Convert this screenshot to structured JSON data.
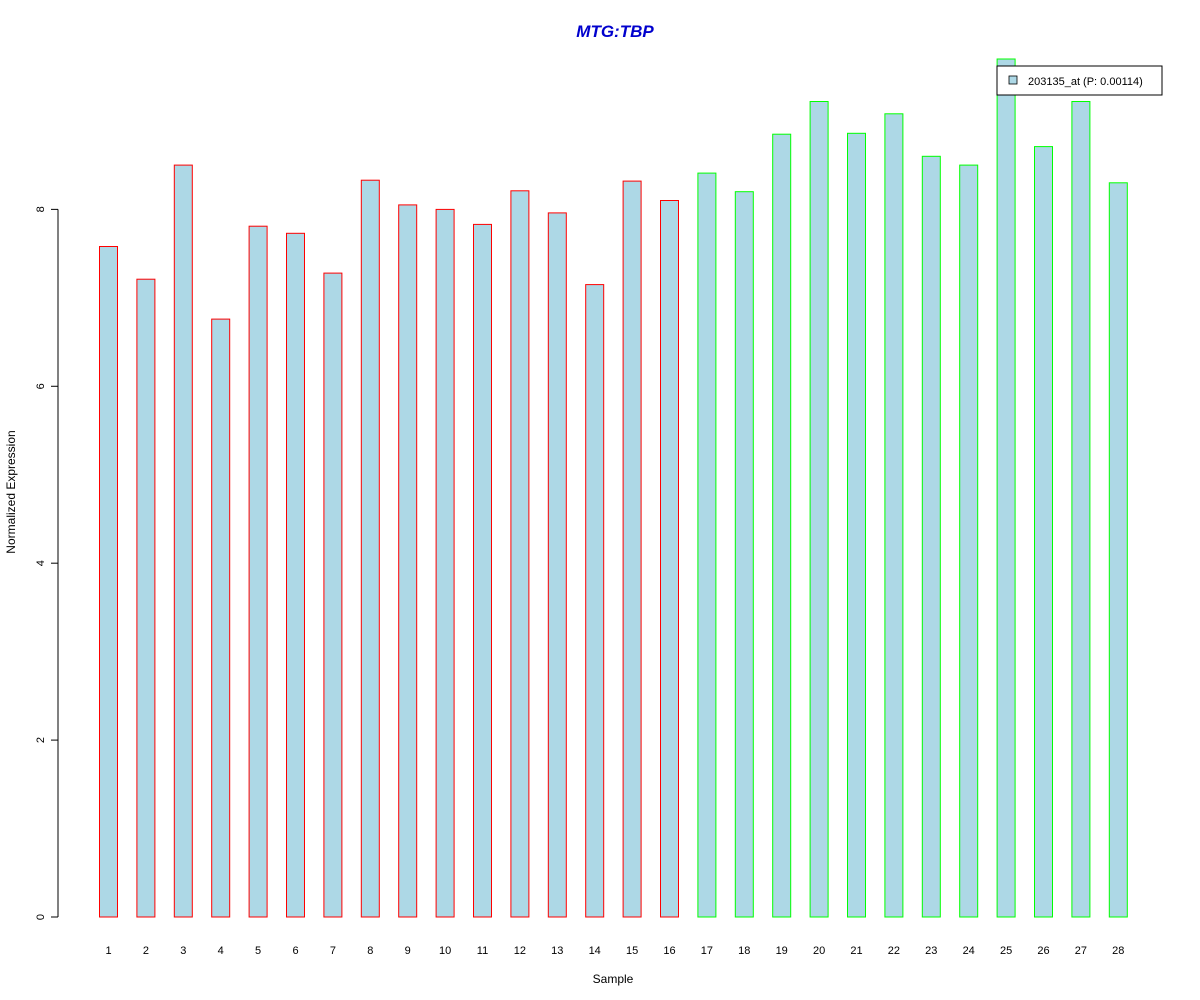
{
  "chart_data": {
    "type": "bar",
    "title": "MTG:TBP",
    "xlabel": "Sample",
    "ylabel": "Normalized Expression",
    "ylim": [
      0,
      9.7
    ],
    "yticks": [
      0,
      2,
      4,
      6,
      8
    ],
    "categories": [
      "1",
      "2",
      "3",
      "4",
      "5",
      "6",
      "7",
      "8",
      "9",
      "10",
      "11",
      "12",
      "13",
      "14",
      "15",
      "16",
      "17",
      "18",
      "19",
      "20",
      "21",
      "22",
      "23",
      "24",
      "25",
      "26",
      "27",
      "28"
    ],
    "values": [
      7.58,
      7.21,
      8.5,
      6.76,
      7.81,
      7.73,
      7.28,
      8.33,
      8.05,
      8.0,
      7.83,
      8.21,
      7.96,
      7.15,
      8.32,
      8.1,
      8.41,
      8.2,
      8.85,
      9.22,
      8.86,
      9.08,
      8.6,
      8.5,
      9.7,
      8.71,
      9.22,
      8.3
    ],
    "groups": [
      "red",
      "red",
      "red",
      "red",
      "red",
      "red",
      "red",
      "red",
      "red",
      "red",
      "red",
      "red",
      "red",
      "red",
      "red",
      "red",
      "green",
      "green",
      "green",
      "green",
      "green",
      "green",
      "green",
      "green",
      "green",
      "green",
      "green",
      "green"
    ],
    "series": [
      {
        "name": "203135_at (P: 0.00114)",
        "fill": "#ADD8E6"
      }
    ],
    "legend_position": "top-right",
    "grid": false
  },
  "colors": {
    "title": "#0000CD",
    "bar_fill": "#ADD8E6",
    "border_red": "#FF0000",
    "border_green": "#00FF00",
    "axis": "#000000"
  }
}
